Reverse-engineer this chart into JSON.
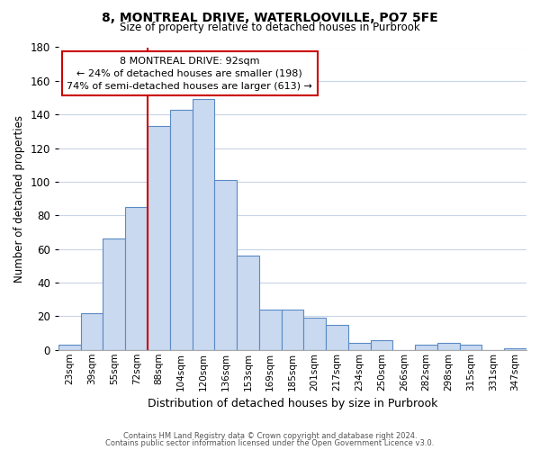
{
  "title": "8, MONTREAL DRIVE, WATERLOOVILLE, PO7 5FE",
  "subtitle": "Size of property relative to detached houses in Purbrook",
  "xlabel": "Distribution of detached houses by size in Purbrook",
  "ylabel": "Number of detached properties",
  "bar_labels": [
    "23sqm",
    "39sqm",
    "55sqm",
    "72sqm",
    "88sqm",
    "104sqm",
    "120sqm",
    "136sqm",
    "153sqm",
    "169sqm",
    "185sqm",
    "201sqm",
    "217sqm",
    "234sqm",
    "250sqm",
    "266sqm",
    "282sqm",
    "298sqm",
    "315sqm",
    "331sqm",
    "347sqm"
  ],
  "bar_heights": [
    3,
    22,
    66,
    85,
    133,
    143,
    149,
    101,
    56,
    24,
    24,
    19,
    15,
    4,
    6,
    0,
    3,
    4,
    3,
    0,
    1
  ],
  "bar_color": "#c9d9f0",
  "bar_edge_color": "#5a8ac6",
  "vline_x_index": 4,
  "vline_color": "#cc0000",
  "annotation_title": "8 MONTREAL DRIVE: 92sqm",
  "annotation_line1": "← 24% of detached houses are smaller (198)",
  "annotation_line2": "74% of semi-detached houses are larger (613) →",
  "annotation_box_color": "#ffffff",
  "annotation_box_edge": "#cc0000",
  "ylim": [
    0,
    180
  ],
  "yticks": [
    0,
    20,
    40,
    60,
    80,
    100,
    120,
    140,
    160,
    180
  ],
  "footer1": "Contains HM Land Registry data © Crown copyright and database right 2024.",
  "footer2": "Contains public sector information licensed under the Open Government Licence v3.0.",
  "background_color": "#ffffff",
  "grid_color": "#c8d4e8"
}
